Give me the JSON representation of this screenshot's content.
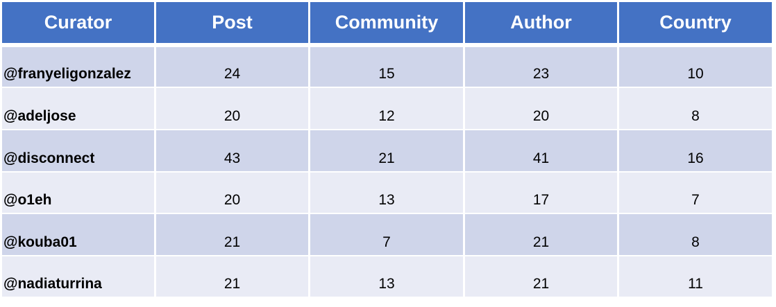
{
  "table": {
    "header": [
      "Curator",
      "Post",
      "Community",
      "Author",
      "Country"
    ],
    "rows": [
      [
        "@franyeligonzalez",
        24,
        15,
        23,
        10
      ],
      [
        "@adeljose",
        20,
        12,
        20,
        8
      ],
      [
        "@disconnect",
        43,
        21,
        41,
        16
      ],
      [
        "@o1eh",
        20,
        13,
        17,
        7
      ],
      [
        "@kouba01",
        21,
        7,
        21,
        8
      ],
      [
        "@nadiaturrina",
        21,
        13,
        21,
        11
      ]
    ]
  }
}
